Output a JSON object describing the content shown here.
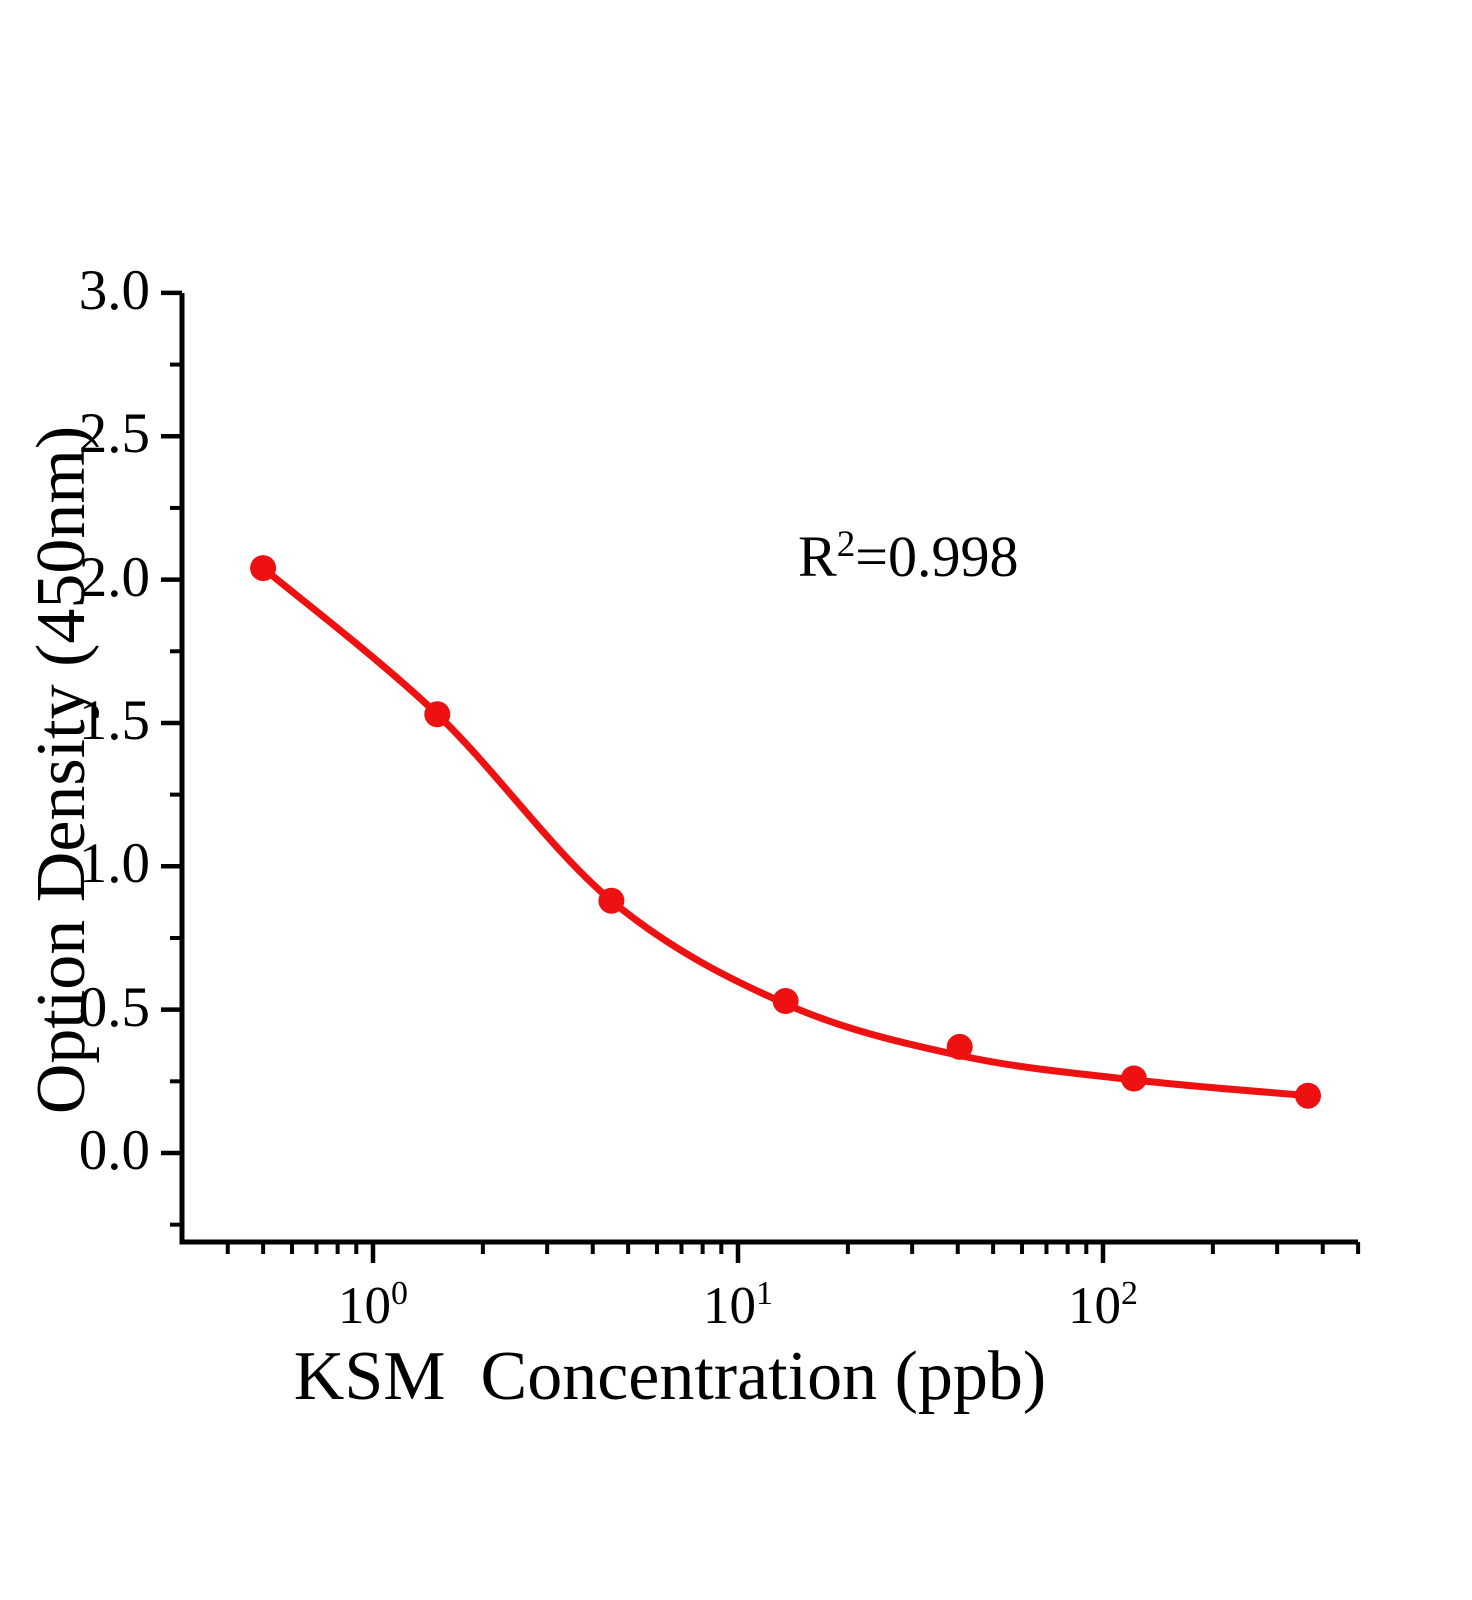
{
  "chart_data": {
    "type": "scatter",
    "title": "",
    "xlabel": "KSM  Concentration（ppb）",
    "ylabel": "Option Density（450nm）",
    "x_scale": "log",
    "y_scale": "linear",
    "xlim": [
      0.3,
      500
    ],
    "ylim": [
      -0.31,
      3.0
    ],
    "grid": false,
    "legend": false,
    "marker_color": "#ee1111",
    "line_color": "#ee1111",
    "axis_color": "#000000",
    "points": {
      "x": [
        0.5,
        1.5,
        4.5,
        13.5,
        40.5,
        121.5,
        364.5
      ],
      "y": [
        2.04,
        1.53,
        0.88,
        0.53,
        0.37,
        0.26,
        0.2
      ]
    },
    "fit_curve": {
      "type": "4PL-sigmoid",
      "x": [
        0.5,
        1.5,
        4.5,
        13.5,
        40.5,
        121.5,
        364.5
      ],
      "y": [
        2.04,
        1.53,
        0.88,
        0.52,
        0.34,
        0.255,
        0.2
      ]
    },
    "annotation": {
      "base": "R",
      "sup": "2",
      "rest": "=0.998"
    },
    "x_ticks": [
      {
        "base": "10",
        "sup": "0",
        "value": 1
      },
      {
        "base": "10",
        "sup": "1",
        "value": 10
      },
      {
        "base": "10",
        "sup": "2",
        "value": 100
      }
    ],
    "x_minor_ticks": [
      0.4,
      0.5,
      0.6,
      0.7,
      0.8,
      0.9,
      2,
      3,
      4,
      5,
      6,
      7,
      8,
      9,
      20,
      30,
      40,
      50,
      60,
      70,
      80,
      90,
      200,
      300,
      400,
      500
    ],
    "y_ticks": [
      {
        "label": "0.0",
        "value": 0
      },
      {
        "label": "0.5",
        "value": 0.5
      },
      {
        "label": "1.0",
        "value": 1
      },
      {
        "label": "1.5",
        "value": 1.5
      },
      {
        "label": "2.0",
        "value": 2
      },
      {
        "label": "2.5",
        "value": 2.5
      },
      {
        "label": "3.0",
        "value": 3
      }
    ],
    "y_minor_ticks": [
      -0.25,
      0.25,
      0.75,
      1.25,
      1.75,
      2.25,
      2.75
    ]
  }
}
